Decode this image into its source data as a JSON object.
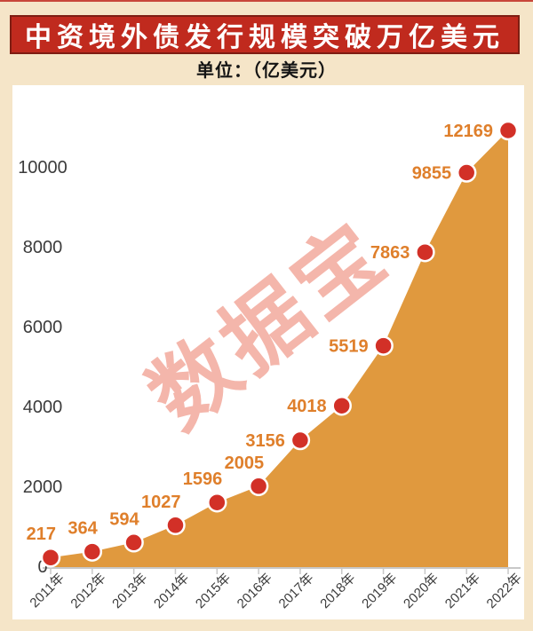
{
  "page": {
    "title": "中资境外债发行规模突破万亿美元",
    "subtitle": "单位：（亿美元）",
    "watermark": "数据宝"
  },
  "colors": {
    "background_cream": "#F5E5C8",
    "banner_fill": "#C02A1E",
    "banner_border": "#7E1D12",
    "banner_text": "#FFFFFF",
    "plot_background": "#FFFFFF",
    "area_fill": "#E0993E",
    "point_fill": "#D23027",
    "point_ring": "#FFFFFF",
    "value_label": "#DF7F2B",
    "axis_line": "#C8C8C8",
    "tick_label": "#3B3B3B",
    "watermark_pink": "#F4B6AB"
  },
  "chart_data": {
    "type": "area",
    "title": "中资境外债发行规模突破万亿美元",
    "unit_label": "单位：（亿美元）",
    "categories": [
      "2011年",
      "2012年",
      "2013年",
      "2014年",
      "2015年",
      "2016年",
      "2017年",
      "2018年",
      "2019年",
      "2020年",
      "2021年",
      "2022年"
    ],
    "values": [
      217,
      364,
      594,
      1027,
      1596,
      2005,
      3156,
      4018,
      5519,
      7863,
      9855,
      12169
    ],
    "data_labels": [
      "217",
      "364",
      "594",
      "1027",
      "1596",
      "2005",
      "3156",
      "4018",
      "5519",
      "7863",
      "9855",
      "12169"
    ],
    "y_ticks": [
      0,
      2000,
      4000,
      6000,
      8000,
      10000
    ],
    "ylim": [
      0,
      12500
    ],
    "xlabel": "",
    "ylabel": "",
    "grid": false,
    "legend": "none",
    "marker": "circle"
  }
}
